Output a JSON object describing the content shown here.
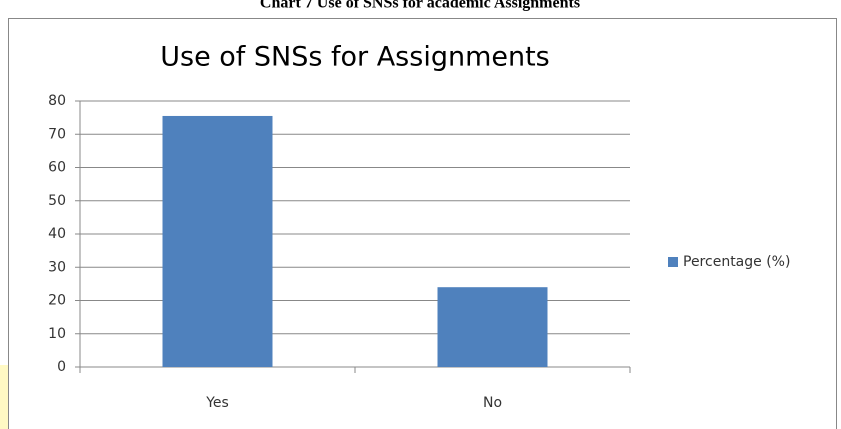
{
  "caption": "Chart 7 Use of SNSs for academic Assignments",
  "chart_data": {
    "type": "bar",
    "title": "Use of SNSs for Assignments",
    "categories": [
      "Yes",
      "No"
    ],
    "series": [
      {
        "name": "Percentage (%)",
        "color": "#4f81bd",
        "values": [
          75.5,
          24
        ]
      }
    ],
    "ylim": [
      0,
      80
    ],
    "yticks": [
      0,
      10,
      20,
      30,
      40,
      50,
      60,
      70,
      80
    ],
    "grid": true,
    "legend": "right"
  }
}
